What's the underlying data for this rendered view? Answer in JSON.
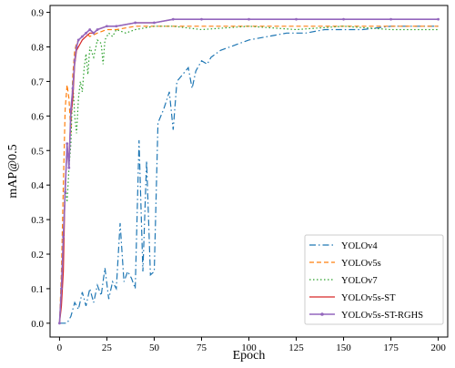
{
  "chart_data": {
    "type": "line",
    "title": "",
    "xlabel": "Epoch",
    "ylabel": "mAP@0.5",
    "xlim": [
      -5,
      205
    ],
    "ylim": [
      -0.04,
      0.92
    ],
    "xticks": [
      "0",
      "25",
      "50",
      "75",
      "100",
      "125",
      "150",
      "175",
      "200"
    ],
    "yticks": [
      "0.0",
      "0.1",
      "0.2",
      "0.3",
      "0.4",
      "0.5",
      "0.6",
      "0.7",
      "0.8",
      "0.9"
    ],
    "grid": false,
    "legend_position": "bottom-right",
    "series": [
      {
        "name": "YOLOv4",
        "color": "#1f77b4",
        "style": "dashdot",
        "x": [
          0,
          2,
          4,
          6,
          8,
          10,
          12,
          14,
          16,
          18,
          20,
          22,
          24,
          26,
          28,
          30,
          32,
          34,
          36,
          38,
          40,
          42,
          44,
          46,
          48,
          50,
          52,
          55,
          58,
          60,
          62,
          65,
          68,
          70,
          72,
          75,
          78,
          80,
          85,
          90,
          95,
          100,
          110,
          120,
          125,
          130,
          140,
          150,
          160,
          175,
          190,
          200
        ],
        "y": [
          0.0,
          0.0,
          0.0,
          0.02,
          0.06,
          0.04,
          0.09,
          0.05,
          0.1,
          0.06,
          0.11,
          0.08,
          0.16,
          0.07,
          0.12,
          0.1,
          0.29,
          0.12,
          0.15,
          0.13,
          0.1,
          0.53,
          0.15,
          0.47,
          0.14,
          0.15,
          0.58,
          0.62,
          0.67,
          0.56,
          0.7,
          0.72,
          0.74,
          0.68,
          0.73,
          0.76,
          0.75,
          0.77,
          0.79,
          0.8,
          0.81,
          0.82,
          0.83,
          0.84,
          0.84,
          0.84,
          0.85,
          0.85,
          0.85,
          0.86,
          0.86,
          0.86
        ]
      },
      {
        "name": "YOLOv5s",
        "color": "#ff7f0e",
        "style": "dashed",
        "x": [
          0,
          1,
          2,
          3,
          4,
          5,
          6,
          7,
          8,
          9,
          10,
          12,
          14,
          16,
          20,
          25,
          30,
          40,
          50,
          60,
          75,
          100,
          125,
          150,
          175,
          200
        ],
        "y": [
          0.0,
          0.15,
          0.4,
          0.62,
          0.69,
          0.65,
          0.55,
          0.72,
          0.79,
          0.81,
          0.82,
          0.83,
          0.84,
          0.83,
          0.84,
          0.85,
          0.85,
          0.86,
          0.86,
          0.86,
          0.86,
          0.86,
          0.86,
          0.86,
          0.86,
          0.86
        ]
      },
      {
        "name": "YOLOv7",
        "color": "#2ca02c",
        "style": "dotted",
        "x": [
          0,
          1,
          2,
          3,
          4,
          5,
          6,
          7,
          8,
          9,
          10,
          11,
          12,
          13,
          14,
          15,
          16,
          18,
          20,
          22,
          23,
          24,
          26,
          28,
          30,
          35,
          40,
          50,
          60,
          75,
          100,
          125,
          150,
          175,
          200
        ],
        "y": [
          0.0,
          0.1,
          0.25,
          0.4,
          0.35,
          0.45,
          0.52,
          0.7,
          0.6,
          0.55,
          0.65,
          0.7,
          0.67,
          0.74,
          0.78,
          0.72,
          0.8,
          0.77,
          0.82,
          0.81,
          0.75,
          0.82,
          0.84,
          0.83,
          0.85,
          0.84,
          0.85,
          0.86,
          0.86,
          0.85,
          0.86,
          0.85,
          0.86,
          0.85,
          0.85
        ]
      },
      {
        "name": "YOLOv5s-ST",
        "color": "#d62728",
        "style": "solid",
        "x": [
          0,
          1,
          2,
          3,
          4,
          5,
          6,
          7,
          8,
          9,
          10,
          12,
          14,
          16,
          18,
          20,
          25,
          30,
          40,
          50,
          60,
          75,
          100,
          125,
          150,
          175,
          200
        ],
        "y": [
          0.0,
          0.05,
          0.15,
          0.4,
          0.5,
          0.48,
          0.6,
          0.65,
          0.75,
          0.79,
          0.8,
          0.82,
          0.83,
          0.84,
          0.84,
          0.85,
          0.86,
          0.86,
          0.87,
          0.87,
          0.88,
          0.88,
          0.88,
          0.88,
          0.88,
          0.88,
          0.88
        ]
      },
      {
        "name": "YOLOv5s-ST-RGHS",
        "color": "#9467bd",
        "style": "solid-marker",
        "x": [
          0,
          1,
          2,
          3,
          4,
          5,
          6,
          7,
          8,
          9,
          10,
          12,
          14,
          16,
          18,
          20,
          25,
          30,
          40,
          50,
          60,
          75,
          100,
          125,
          150,
          175,
          200
        ],
        "y": [
          0.0,
          0.1,
          0.25,
          0.38,
          0.52,
          0.45,
          0.62,
          0.68,
          0.76,
          0.8,
          0.82,
          0.83,
          0.84,
          0.85,
          0.84,
          0.85,
          0.86,
          0.86,
          0.87,
          0.87,
          0.88,
          0.88,
          0.88,
          0.88,
          0.88,
          0.88,
          0.88
        ]
      }
    ]
  }
}
